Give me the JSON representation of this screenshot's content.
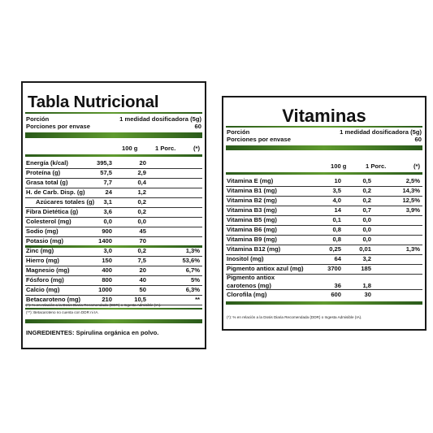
{
  "nutrition": {
    "title": "Tabla Nutricional",
    "portion_label": "Porción",
    "portion_value": "1 medidad dosificadora (5g)",
    "servings_label": "Porciones por envase",
    "servings_value": "60",
    "col_headers": [
      "100 g",
      "1 Porc.",
      "(*)"
    ],
    "rows": [
      {
        "label": "Energía (k/cal)",
        "v100": "395,3",
        "vporc": "20",
        "pct": ""
      },
      {
        "label": "Proteína (g)",
        "v100": "57,5",
        "vporc": "2,9",
        "pct": ""
      },
      {
        "label": "Grasa total (g)",
        "v100": "7,7",
        "vporc": "0,4",
        "pct": ""
      },
      {
        "label": "H. de Carb. Disp. (g)",
        "v100": "24",
        "vporc": "1,2",
        "pct": ""
      },
      {
        "label": "Azúcares totales (g)",
        "v100": "3,1",
        "vporc": "0,2",
        "pct": "",
        "indent": true
      },
      {
        "label": "Fibra Dietética (g)",
        "v100": "3,6",
        "vporc": "0,2",
        "pct": ""
      },
      {
        "label": "Colesterol (mg)",
        "v100": "0,0",
        "vporc": "0,0",
        "pct": ""
      },
      {
        "label": "Sodio (mg)",
        "v100": "900",
        "vporc": "45",
        "pct": ""
      },
      {
        "label": "Potasio (mg)",
        "v100": "1400",
        "vporc": "70",
        "pct": ""
      },
      {
        "label": "Zinc (mg)",
        "v100": "3,0",
        "vporc": "0,2",
        "pct": "1,3%"
      },
      {
        "label": "Hierro (mg)",
        "v100": "150",
        "vporc": "7,5",
        "pct": "53,6%"
      },
      {
        "label": "Magnesio (mg)",
        "v100": "400",
        "vporc": "20",
        "pct": "6,7%"
      },
      {
        "label": "Fósforo (mg)",
        "v100": "800",
        "vporc": "40",
        "pct": "5%"
      },
      {
        "label": "Calcio (mg)",
        "v100": "1000",
        "vporc": "50",
        "pct": "6,3%"
      },
      {
        "label": "Betacaroteno (mg)",
        "v100": "210",
        "vporc": "10,5",
        "pct": "**"
      }
    ],
    "footnote_1": "(*): % en relación a la Dosis Diaria Recomendada (DDR) o Ingesta Admisible (IA).",
    "footnote_2": "(**): Betacaroteno no cuenta con DDR ni IA.",
    "ingredients_label": "INGREDIENTES:",
    "ingredients_value": "Spirulina orgánica en polvo."
  },
  "vitamins": {
    "title": "Vitaminas",
    "portion_label": "Porción",
    "portion_value": "1 medidad dosificadora (5g)",
    "servings_label": "Porciones por envase",
    "servings_value": "60",
    "col_headers": [
      "100 g",
      "1 Porc.",
      "(*)"
    ],
    "rows": [
      {
        "label": "Vitamina E (mg)",
        "v100": "10",
        "vporc": "0,5",
        "pct": "2,5%"
      },
      {
        "label": "Vitamina B1 (mg)",
        "v100": "3,5",
        "vporc": "0,2",
        "pct": "14,3%"
      },
      {
        "label": "Vitamina B2 (mg)",
        "v100": "4,0",
        "vporc": "0,2",
        "pct": "12,5%"
      },
      {
        "label": "Vitamina B3 (mg)",
        "v100": "14",
        "vporc": "0,7",
        "pct": "3,9%"
      },
      {
        "label": "Vitamina B5 (mg)",
        "v100": "0,1",
        "vporc": "0,0",
        "pct": ""
      },
      {
        "label": "Vitamina B6 (mg)",
        "v100": "0,8",
        "vporc": "0,0",
        "pct": ""
      },
      {
        "label": "Vitamina B9 (mg)",
        "v100": "0,8",
        "vporc": "0,0",
        "pct": ""
      },
      {
        "label": "Vitamina B12 (mg)",
        "v100": "0,25",
        "vporc": "0,01",
        "pct": "1,3%"
      },
      {
        "label": "Inositol (mg)",
        "v100": "64",
        "vporc": "3,2",
        "pct": ""
      },
      {
        "label": "Pigmento antiox azul (mg)",
        "v100": "3700",
        "vporc": "185",
        "pct": ""
      }
    ],
    "carotenos_label_1": "Pigmento antiox",
    "carotenos_label_2": "carotenos (mg)",
    "carotenos_v100": "36",
    "carotenos_vporc": "1,8",
    "clorofila_label": "Clorofila (mg)",
    "clorofila_v100": "600",
    "clorofila_vporc": "30",
    "footnote_1": "(*): % en relación a la Dosis Diaria Recomendada (DDR) o Ingesta Admisible (IA)."
  }
}
